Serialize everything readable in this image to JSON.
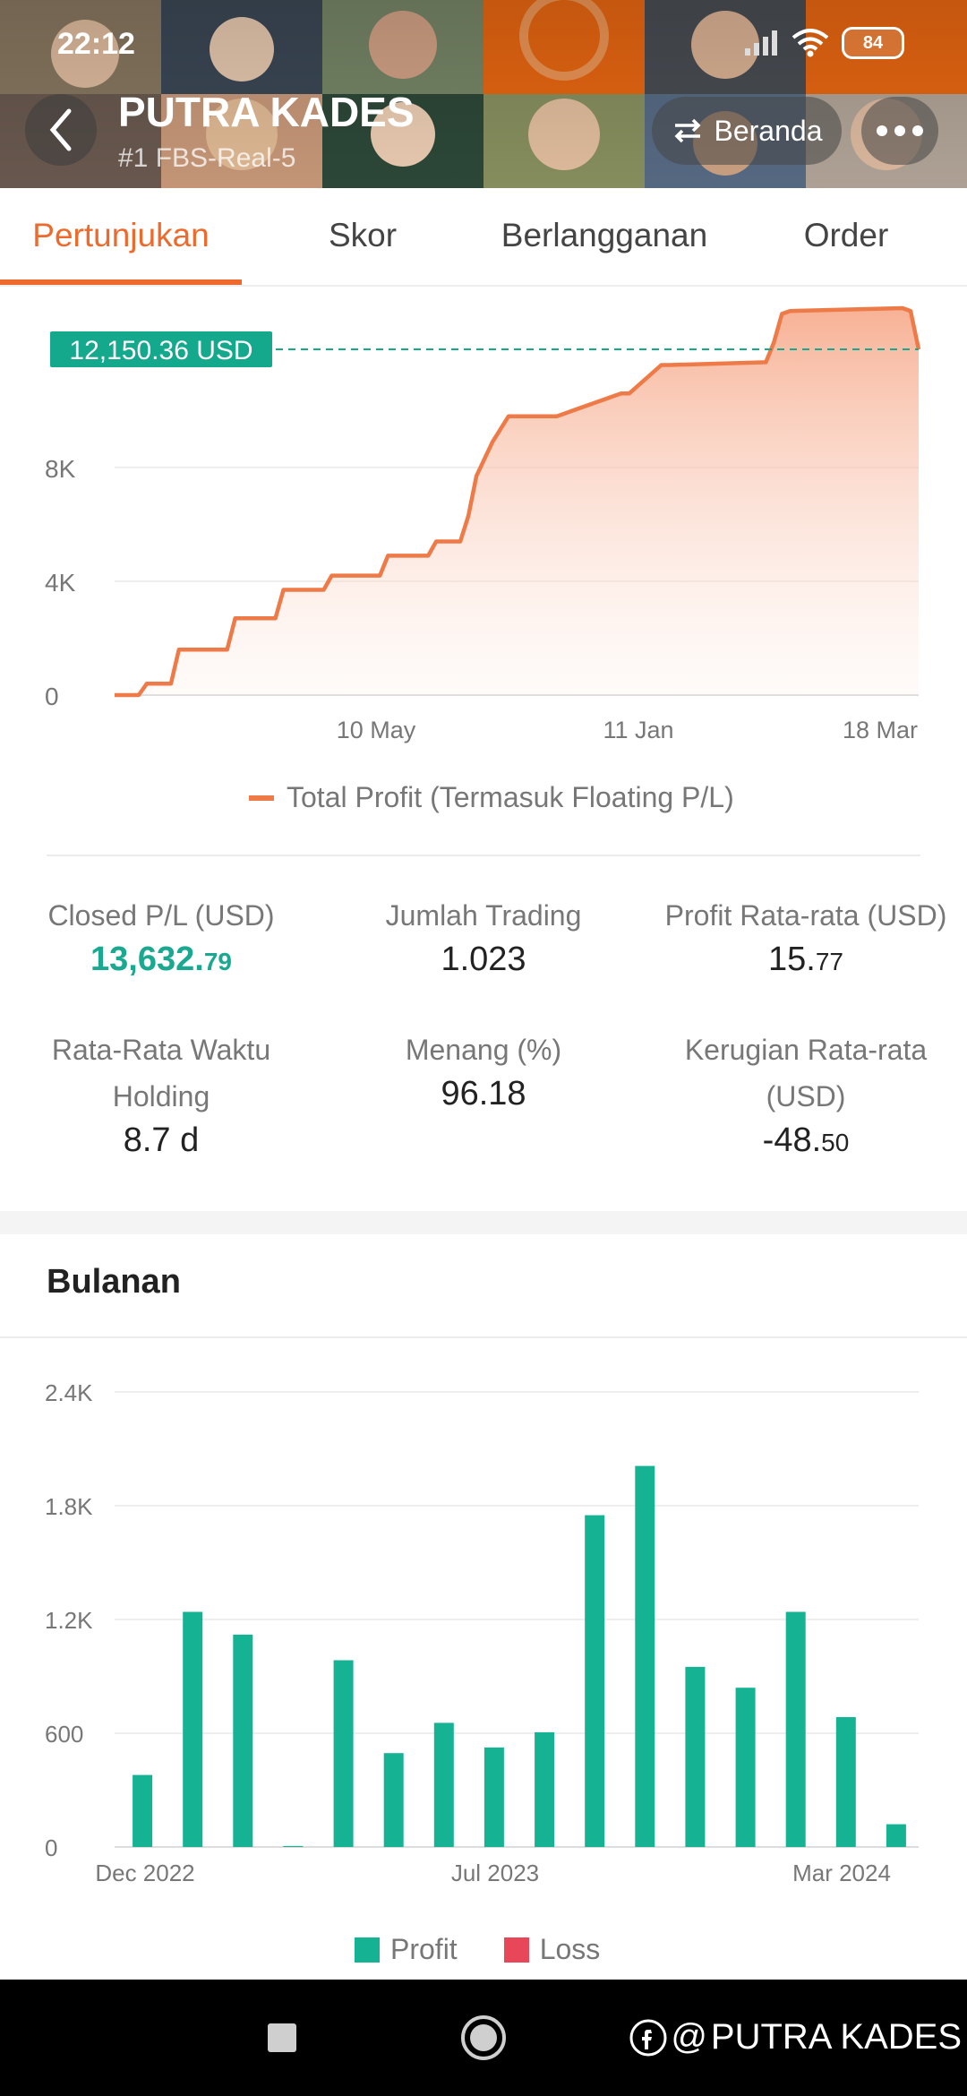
{
  "status_bar": {
    "time": "22:12",
    "battery": "84"
  },
  "header": {
    "trader_name": "PUTRA KADES",
    "subtitle": "#1   FBS-Real-5",
    "beranda_label": "Beranda"
  },
  "tabs": [
    {
      "label": "Pertunjukan"
    },
    {
      "label": "Skor"
    },
    {
      "label": "Berlangganan"
    },
    {
      "label": "Order"
    }
  ],
  "profit_chart": {
    "current_value_label": "12,150.36 USD",
    "y_ticks": [
      "0",
      "4K",
      "8K"
    ],
    "x_ticks": [
      "10 May",
      "11 Jan",
      "18 Mar"
    ],
    "legend_label": "Total Profit (Termasuk Floating P/L)",
    "line_color": "#ee7a48",
    "badge_color": "#14a88c"
  },
  "stats": {
    "closed_pl": {
      "label": "Closed P/L (USD)",
      "value_main": "13,632.",
      "value_small": "79"
    },
    "total_trades": {
      "label": "Jumlah Trading",
      "value": "1.023"
    },
    "avg_profit": {
      "label": "Profit Rata-rata (USD)",
      "value_main": "15.",
      "value_small": "77"
    },
    "avg_holding": {
      "label_line1": "Rata-Rata Waktu",
      "label_line2": "Holding",
      "value": "8.7 d"
    },
    "win_rate": {
      "label": "Menang (%)",
      "value": "96.18"
    },
    "avg_loss": {
      "label_line1": "Kerugian Rata-rata",
      "label_line2": "(USD)",
      "value_main": "-48.",
      "value_small": "50"
    }
  },
  "monthly": {
    "title": "Bulanan",
    "legend_profit": "Profit",
    "legend_loss": "Loss",
    "profit_color": "#15b393",
    "loss_color": "#e8475a"
  },
  "chart_data": [
    {
      "type": "area",
      "title": "",
      "legend": [
        "Total Profit (Termasuk Floating P/L)"
      ],
      "ylim": [
        0,
        13600
      ],
      "y_ticks": [
        0,
        4000,
        8000
      ],
      "x_ticks": [
        "10 May",
        "11 Jan",
        "18 Mar"
      ],
      "current_value": 12150.36,
      "series": [
        {
          "name": "Total Profit (Termasuk Floating P/L)",
          "x": [
            0,
            3,
            4,
            7,
            8,
            14,
            15,
            20,
            21,
            26,
            27,
            33,
            34,
            39,
            40,
            43,
            44,
            45,
            47,
            49,
            51,
            53,
            55,
            63,
            64,
            68,
            69,
            81,
            82,
            83,
            84,
            98,
            99,
            100
          ],
          "y": [
            0,
            0,
            400,
            400,
            1600,
            1600,
            2700,
            2700,
            3700,
            3700,
            4200,
            4200,
            4900,
            4900,
            5400,
            5400,
            6300,
            7700,
            8900,
            9800,
            9800,
            9800,
            9800,
            10600,
            10600,
            11600,
            11600,
            11700,
            12400,
            13400,
            13500,
            13600,
            13500,
            12150
          ]
        }
      ]
    },
    {
      "type": "bar",
      "title": "Bulanan",
      "x_ticks": [
        "Dec 2022",
        "Jul 2023",
        "Mar 2024"
      ],
      "categories": [
        "Dec 2022",
        "Jan 2023",
        "Feb 2023",
        "Mar 2023",
        "Apr 2023",
        "May 2023",
        "Jun 2023",
        "Jul 2023",
        "Aug 2023",
        "Sep 2023",
        "Oct 2023",
        "Nov 2023",
        "Dec 2023",
        "Jan 2024",
        "Feb 2024",
        "Mar 2024"
      ],
      "ylim": [
        0,
        2400
      ],
      "y_ticks": [
        0,
        600,
        1200,
        1800,
        2400
      ],
      "y_tick_labels": [
        "0",
        "600",
        "1.2K",
        "1.8K",
        "2.4K"
      ],
      "legend": [
        "Profit",
        "Loss"
      ],
      "series": [
        {
          "name": "Profit",
          "values": [
            380,
            1240,
            1120,
            5,
            985,
            495,
            655,
            525,
            605,
            1750,
            2010,
            950,
            840,
            1240,
            685,
            120
          ]
        },
        {
          "name": "Loss",
          "values": [
            0,
            0,
            0,
            0,
            0,
            0,
            0,
            0,
            0,
            0,
            0,
            0,
            0,
            0,
            0,
            0
          ]
        }
      ]
    }
  ]
}
